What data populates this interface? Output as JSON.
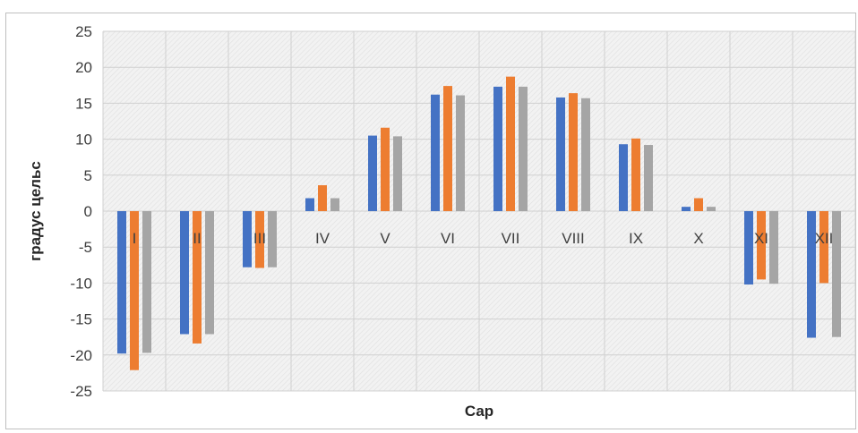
{
  "chart_data": {
    "type": "bar",
    "title": "",
    "xlabel": "Сар",
    "ylabel": "градус цельс",
    "ylim": [
      -25,
      25
    ],
    "yticks": [
      25,
      20,
      15,
      10,
      5,
      0,
      -5,
      -10,
      -15,
      -20,
      -25
    ],
    "categories": [
      "I",
      "II",
      "III",
      "IV",
      "V",
      "VI",
      "VII",
      "VIII",
      "IX",
      "X",
      "XI",
      "XII"
    ],
    "grid": true,
    "legend": "none",
    "series": [
      {
        "color": "#4472c4",
        "values": [
          -19.8,
          -17.1,
          -7.8,
          1.8,
          10.5,
          16.2,
          17.3,
          15.8,
          9.3,
          0.6,
          -10.2,
          -17.6
        ]
      },
      {
        "color": "#ed7d31",
        "values": [
          -22.1,
          -18.4,
          -7.9,
          3.6,
          11.6,
          17.4,
          18.7,
          16.4,
          10.1,
          1.8,
          -9.5,
          -10.0
        ]
      },
      {
        "color": "#a5a5a5",
        "values": [
          -19.7,
          -17.1,
          -7.8,
          1.8,
          10.4,
          16.1,
          17.3,
          15.7,
          9.2,
          0.6,
          -10.1,
          -17.5
        ]
      }
    ]
  }
}
